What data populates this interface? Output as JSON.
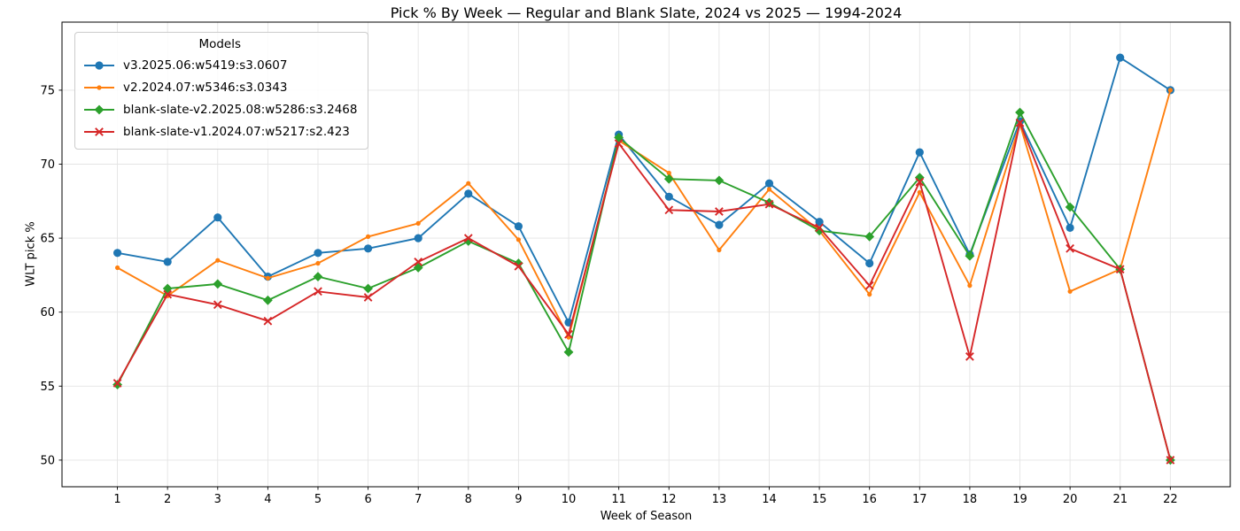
{
  "chart_data": {
    "type": "line",
    "title": "Pick % By Week — Regular and Blank Slate, 2024 vs 2025 — 1994-2024",
    "xlabel": "Week of Season",
    "ylabel": "WLT pick %",
    "legend_title": "Models",
    "legend_position": "upper-left",
    "grid": true,
    "x": [
      1,
      2,
      3,
      4,
      5,
      6,
      7,
      8,
      9,
      10,
      11,
      12,
      13,
      14,
      15,
      16,
      17,
      18,
      19,
      20,
      21,
      22
    ],
    "xlim": [
      -0.105,
      23.195
    ],
    "ylim": [
      48.2,
      79.6
    ],
    "yticks": [
      50,
      55,
      60,
      65,
      70,
      75
    ],
    "series": [
      {
        "name": "v3.2025.06:w5419:s3.0607",
        "color": "#1f77b4",
        "marker": "circle",
        "values": [
          64.0,
          63.4,
          66.4,
          62.4,
          64.0,
          64.3,
          65.0,
          68.0,
          65.8,
          59.3,
          72.0,
          67.8,
          65.9,
          68.7,
          66.1,
          63.3,
          70.8,
          63.9,
          72.9,
          65.7,
          77.2,
          75.0
        ]
      },
      {
        "name": "v2.2024.07:w5346:s3.0343",
        "color": "#ff7f0e",
        "marker": "dot",
        "values": [
          63.0,
          61.1,
          63.5,
          62.3,
          63.3,
          65.1,
          66.0,
          68.7,
          64.9,
          58.3,
          71.6,
          69.4,
          64.2,
          68.3,
          65.5,
          61.2,
          68.1,
          61.8,
          72.7,
          61.4,
          62.9,
          75.0
        ]
      },
      {
        "name": "blank-slate-v2.2025.08:w5286:s3.2468",
        "color": "#2ca02c",
        "marker": "diamond",
        "values": [
          55.1,
          61.6,
          61.9,
          60.8,
          62.4,
          61.6,
          63.0,
          64.8,
          63.3,
          57.3,
          71.8,
          69.0,
          68.9,
          67.4,
          65.5,
          65.1,
          69.1,
          63.8,
          73.5,
          67.1,
          62.9,
          50.0
        ]
      },
      {
        "name": "blank-slate-v1.2024.07:w5217:s2.423",
        "color": "#d62728",
        "marker": "x",
        "values": [
          55.2,
          61.2,
          60.5,
          59.4,
          61.4,
          61.0,
          63.4,
          65.0,
          63.1,
          58.5,
          71.4,
          66.9,
          66.8,
          67.3,
          65.7,
          61.8,
          68.8,
          57.0,
          72.8,
          64.3,
          62.9,
          50.0
        ]
      }
    ]
  }
}
